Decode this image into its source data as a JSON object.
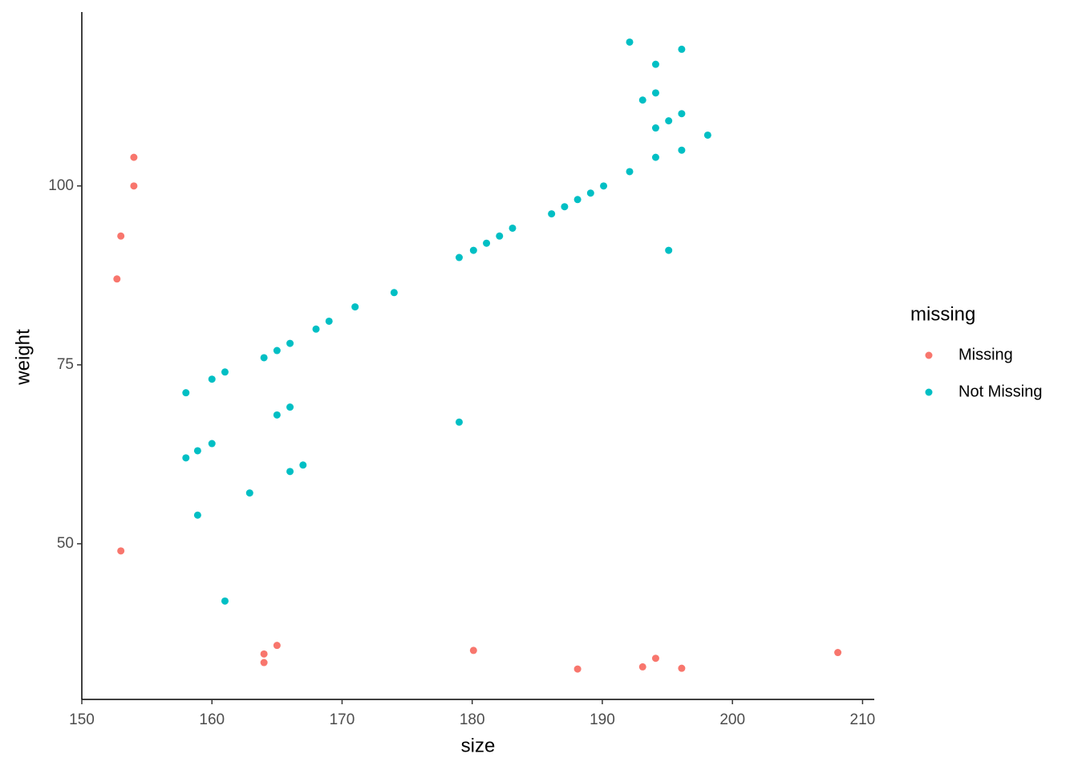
{
  "chart_data": {
    "type": "scatter",
    "x_label": "size",
    "y_label": "weight",
    "legend_title": "missing",
    "xlim": [
      150,
      210.9
    ],
    "ylim": [
      28.25,
      124.3
    ],
    "xticks": [
      150,
      160,
      170,
      180,
      190,
      200,
      210
    ],
    "yticks": [
      50,
      75,
      100
    ],
    "grid": false,
    "legend": "right",
    "series": [
      {
        "name": "Missing",
        "color": "#F8766D",
        "x": [
          152.7,
          153,
          154,
          154,
          153,
          164,
          164,
          165,
          180.1,
          188.1,
          193.1,
          194.1,
          196.1,
          208.1
        ],
        "y": [
          87.0,
          93.0,
          100,
          104.0,
          49.0,
          34.6,
          33.4,
          35.8,
          35.1,
          32.5,
          32.8,
          34.0,
          32.6,
          34.8
        ]
      },
      {
        "name": "Not Missing",
        "color": "#00BFC4",
        "x": [
          192.1,
          196.1,
          194.1,
          193.1,
          194.1,
          195.1,
          196.1,
          194.1,
          198.1,
          196.1,
          194.1,
          192.1,
          190.1,
          189.1,
          188.1,
          187.1,
          186.1,
          195.1,
          183.1,
          182.1,
          181.1,
          180.1,
          179,
          174,
          171,
          169,
          168,
          166,
          165,
          164,
          161,
          160,
          158,
          179,
          166,
          165,
          160,
          158.9,
          158,
          167,
          166,
          162.9,
          158.9,
          161
        ],
        "y": [
          120.1,
          119.1,
          117.0,
          112.0,
          113.0,
          109.1,
          110.1,
          108.1,
          107.1,
          105.0,
          104.0,
          102.0,
          100,
          99.0,
          98.1,
          97.1,
          96.1,
          91.0,
          94.1,
          93.0,
          92.0,
          91.0,
          90.0,
          85.1,
          83.1,
          81.1,
          80.0,
          78.0,
          77.0,
          76.0,
          74.0,
          73.0,
          71.1,
          67.0,
          69.1,
          68.0,
          64.0,
          63.0,
          62.0,
          61.0,
          60.1,
          57.1,
          54.0,
          42.0
        ]
      }
    ]
  }
}
